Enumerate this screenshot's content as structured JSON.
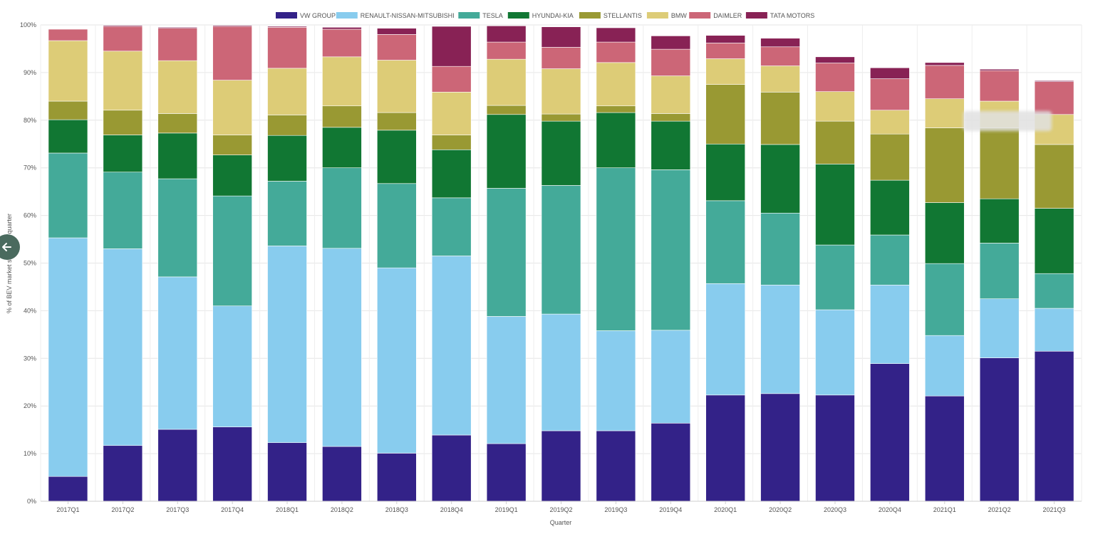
{
  "chart_data": {
    "type": "bar",
    "stacked": true,
    "title": "",
    "xlabel": "Quarter",
    "ylabel": "% of BEV market share per quarter",
    "ylim": [
      0,
      100
    ],
    "y_ticks": [
      "0%",
      "10%",
      "20%",
      "30%",
      "40%",
      "50%",
      "60%",
      "70%",
      "80%",
      "90%",
      "100%"
    ],
    "grid": true,
    "legend_position": "top",
    "categories": [
      "2017Q1",
      "2017Q2",
      "2017Q3",
      "2017Q4",
      "2018Q1",
      "2018Q2",
      "2018Q3",
      "2018Q4",
      "2019Q1",
      "2019Q2",
      "2019Q3",
      "2019Q4",
      "2020Q1",
      "2020Q2",
      "2020Q3",
      "2020Q4",
      "2021Q1",
      "2021Q2",
      "2021Q3"
    ],
    "series": [
      {
        "name": "VW GROUP",
        "color": "#332288",
        "values": [
          5.2,
          11.7,
          15.1,
          15.6,
          12.3,
          11.5,
          10.1,
          13.9,
          12.1,
          14.8,
          14.8,
          16.4,
          22.3,
          22.6,
          22.3,
          28.9,
          22.1,
          30.1,
          31.5
        ]
      },
      {
        "name": "RENAULT-NISSAN-MITSUBISHI",
        "color": "#88CCEE",
        "values": [
          50.1,
          41.3,
          32.0,
          25.4,
          41.3,
          41.6,
          38.9,
          37.6,
          26.7,
          24.5,
          21.0,
          19.5,
          23.4,
          22.8,
          17.9,
          16.5,
          12.7,
          12.4,
          9.0
        ]
      },
      {
        "name": "TESLA",
        "color": "#44AA99",
        "values": [
          17.8,
          16.1,
          20.6,
          23.1,
          13.6,
          16.9,
          17.7,
          12.2,
          26.9,
          27.0,
          34.2,
          33.7,
          17.4,
          15.1,
          13.6,
          10.5,
          15.1,
          11.7,
          7.3
        ]
      },
      {
        "name": "HYUNDAI-KIA",
        "color": "#117733",
        "values": [
          7.0,
          7.8,
          9.6,
          8.6,
          9.6,
          8.5,
          11.2,
          10.1,
          15.5,
          13.5,
          11.6,
          10.2,
          11.9,
          14.4,
          17.0,
          11.5,
          12.8,
          9.3,
          13.7
        ]
      },
      {
        "name": "STELLANTIS",
        "color": "#999933",
        "values": [
          3.9,
          5.2,
          4.1,
          4.2,
          4.3,
          4.5,
          3.7,
          3.1,
          1.9,
          1.5,
          1.4,
          1.6,
          12.5,
          11.0,
          9.0,
          9.7,
          15.7,
          14.9,
          13.4
        ]
      },
      {
        "name": "BMW",
        "color": "#DDCC77",
        "values": [
          12.7,
          12.4,
          11.1,
          11.5,
          9.8,
          10.3,
          11.0,
          9.0,
          9.7,
          9.5,
          9.1,
          7.9,
          5.4,
          5.5,
          6.2,
          5.0,
          6.1,
          5.6,
          6.3
        ]
      },
      {
        "name": "DAIMLER",
        "color": "#CC6677",
        "values": [
          2.4,
          5.2,
          6.8,
          11.3,
          8.6,
          5.8,
          5.4,
          5.4,
          3.6,
          4.5,
          4.3,
          5.6,
          3.3,
          4.0,
          6.0,
          6.6,
          7.0,
          6.4,
          6.9
        ]
      },
      {
        "name": "TATA MOTORS",
        "color": "#882255",
        "values": [
          0.0,
          0.2,
          0.2,
          0.2,
          0.2,
          0.4,
          1.3,
          8.4,
          3.4,
          4.3,
          3.0,
          2.8,
          1.6,
          1.8,
          1.3,
          2.3,
          0.6,
          0.3,
          0.2
        ]
      }
    ]
  }
}
